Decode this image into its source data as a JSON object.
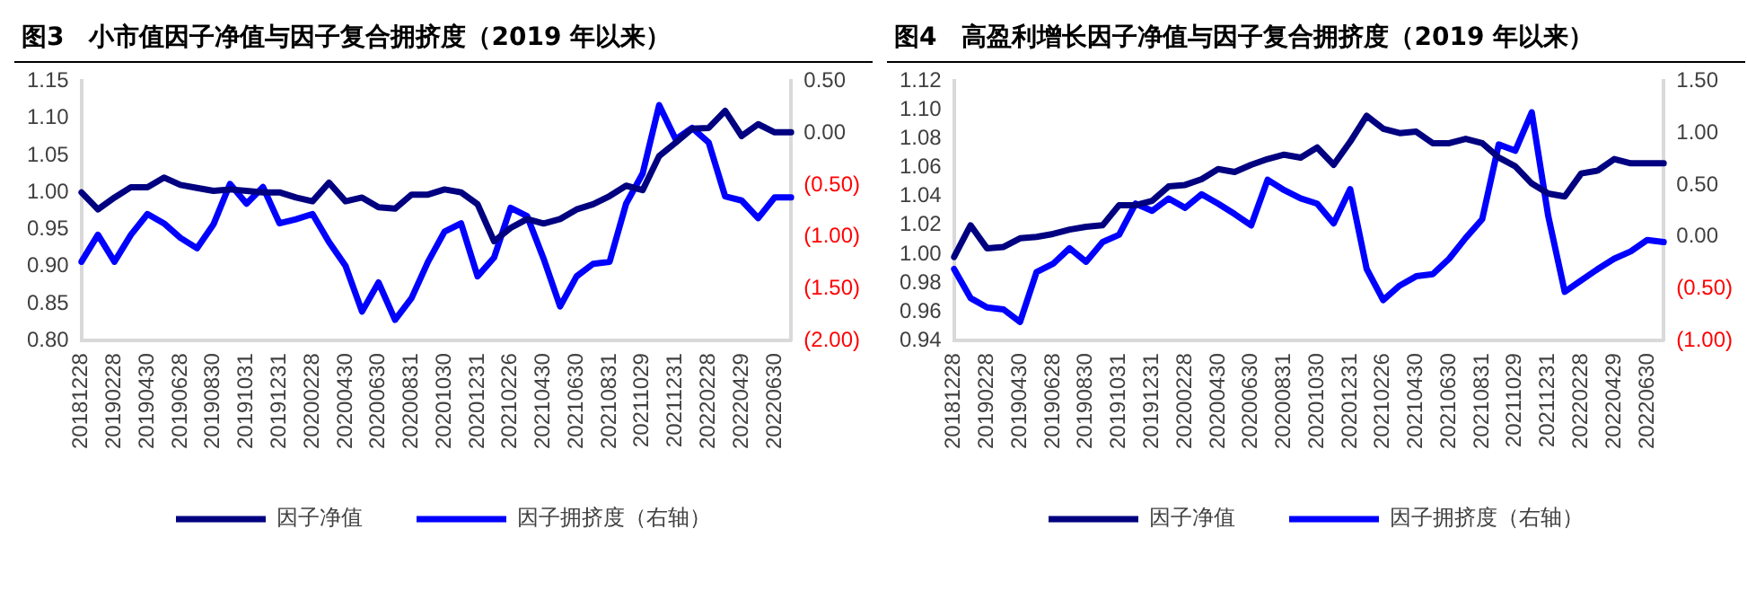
{
  "chart_data": [
    {
      "type": "line",
      "title": "图3　小市值因子净值与因子复合拥挤度（2019 年以来）",
      "categories": [
        "20181228",
        null,
        "20190228",
        null,
        "20190430",
        null,
        "20190628",
        null,
        "20190830",
        null,
        "20191031",
        null,
        "20191231",
        null,
        "20200228",
        null,
        "20200430",
        null,
        "20200630",
        null,
        "20200831",
        null,
        "20201030",
        null,
        "20201231",
        null,
        "20210226",
        null,
        "20210430",
        null,
        "20210630",
        null,
        "20210831",
        null,
        "20211029",
        null,
        "20211231",
        null,
        "20220228",
        null,
        "20220429",
        null,
        "20220630",
        null
      ],
      "series": [
        {
          "name": "因子净值",
          "color": "#000080",
          "values": [
            1.0,
            0.977,
            0.993,
            1.007,
            1.007,
            1.02,
            1.01,
            1.006,
            1.002,
            1.004,
            1.002,
            1.0,
            1.0,
            0.993,
            0.988,
            1.013,
            0.988,
            0.993,
            0.98,
            0.978,
            0.997,
            0.997,
            1.004,
            1.0,
            0.984,
            0.934,
            0.952,
            0.964,
            0.958,
            0.964,
            0.977,
            0.984,
            0.995,
            1.009,
            1.003,
            1.049,
            1.067,
            1.086,
            1.087,
            1.11,
            1.076,
            1.092,
            1.081,
            1.081
          ]
        },
        {
          "name": "因子拥挤度（右轴）",
          "color": "#0000ff",
          "axis": "y2",
          "values": [
            -1.24,
            -0.98,
            -1.24,
            -0.98,
            -0.78,
            -0.87,
            -1.01,
            -1.11,
            -0.88,
            -0.49,
            -0.68,
            -0.52,
            -0.87,
            -0.83,
            -0.78,
            -1.05,
            -1.28,
            -1.72,
            -1.44,
            -1.8,
            -1.59,
            -1.24,
            -0.95,
            -0.87,
            -1.38,
            -1.2,
            -0.72,
            -0.8,
            -1.21,
            -1.67,
            -1.38,
            -1.26,
            -1.24,
            -0.68,
            -0.39,
            0.27,
            -0.06,
            0.05,
            -0.09,
            -0.61,
            -0.65,
            -0.82,
            -0.62,
            -0.62
          ]
        }
      ],
      "ylim": [
        0.8,
        1.15
      ],
      "yticks": [
        {
          "value": 0.8,
          "label": "0.80"
        },
        {
          "value": 0.85,
          "label": "0.85"
        },
        {
          "value": 0.9,
          "label": "0.90"
        },
        {
          "value": 0.95,
          "label": "0.95"
        },
        {
          "value": 1.0,
          "label": "1.00"
        },
        {
          "value": 1.05,
          "label": "1.05"
        },
        {
          "value": 1.1,
          "label": "1.10"
        },
        {
          "value": 1.15,
          "label": "1.15"
        }
      ],
      "y2lim": [
        -2,
        0.5
      ],
      "y2ticks": [
        {
          "value": -2,
          "label": "(2.00)"
        },
        {
          "value": -1.5,
          "label": "(1.50)"
        },
        {
          "value": -1,
          "label": "(1.00)"
        },
        {
          "value": -0.5,
          "label": "(0.50)"
        },
        {
          "value": 0,
          "label": "0.00"
        },
        {
          "value": 0.5,
          "label": "0.50"
        }
      ],
      "grid": false,
      "legend": "bottom",
      "marker": "none",
      "line_style": "solid"
    },
    {
      "type": "line",
      "title": "图4　高盈利增长因子净值与因子复合拥挤度（2019 年以来）",
      "categories": [
        "20181228",
        null,
        "20190228",
        null,
        "20190430",
        null,
        "20190628",
        null,
        "20190830",
        null,
        "20191031",
        null,
        "20191231",
        null,
        "20200228",
        null,
        "20200430",
        null,
        "20200630",
        null,
        "20200831",
        null,
        "20201030",
        null,
        "20201231",
        null,
        "20210226",
        null,
        "20210430",
        null,
        "20210630",
        null,
        "20210831",
        null,
        "20211029",
        null,
        "20211231",
        null,
        "20220228",
        null,
        "20220429",
        null,
        "20220630",
        null
      ],
      "series": [
        {
          "name": "因子净值",
          "color": "#000080",
          "values": [
            0.998,
            1.02,
            1.004,
            1.005,
            1.011,
            1.012,
            1.014,
            1.017,
            1.019,
            1.02,
            1.034,
            1.034,
            1.037,
            1.047,
            1.048,
            1.052,
            1.059,
            1.057,
            1.062,
            1.066,
            1.069,
            1.067,
            1.074,
            1.062,
            1.078,
            1.096,
            1.087,
            1.084,
            1.085,
            1.077,
            1.077,
            1.08,
            1.077,
            1.067,
            1.061,
            1.049,
            1.042,
            1.04,
            1.056,
            1.058,
            1.066,
            1.063,
            1.063,
            1.063
          ]
        },
        {
          "name": "因子拥挤度（右轴）",
          "color": "#0000ff",
          "axis": "y2",
          "values": [
            -0.31,
            -0.59,
            -0.68,
            -0.7,
            -0.82,
            -0.34,
            -0.26,
            -0.11,
            -0.24,
            -0.05,
            0.02,
            0.32,
            0.25,
            0.37,
            0.28,
            0.41,
            0.32,
            0.22,
            0.11,
            0.55,
            0.45,
            0.37,
            0.32,
            0.13,
            0.46,
            -0.31,
            -0.61,
            -0.47,
            -0.38,
            -0.36,
            -0.21,
            -0.01,
            0.17,
            0.89,
            0.83,
            1.2,
            0.2,
            -0.53,
            -0.42,
            -0.31,
            -0.21,
            -0.14,
            -0.03,
            -0.05
          ]
        }
      ],
      "ylim": [
        0.94,
        1.12
      ],
      "yticks": [
        {
          "value": 0.94,
          "label": "0.94"
        },
        {
          "value": 0.96,
          "label": "0.96"
        },
        {
          "value": 0.98,
          "label": "0.98"
        },
        {
          "value": 1.0,
          "label": "1.00"
        },
        {
          "value": 1.02,
          "label": "1.02"
        },
        {
          "value": 1.04,
          "label": "1.04"
        },
        {
          "value": 1.06,
          "label": "1.06"
        },
        {
          "value": 1.08,
          "label": "1.08"
        },
        {
          "value": 1.1,
          "label": "1.10"
        },
        {
          "value": 1.12,
          "label": "1.12"
        }
      ],
      "y2lim": [
        -1,
        1.5
      ],
      "y2ticks": [
        {
          "value": -1,
          "label": "(1.00)"
        },
        {
          "value": -0.5,
          "label": "(0.50)"
        },
        {
          "value": 0,
          "label": "0.00"
        },
        {
          "value": 0.5,
          "label": "0.50"
        },
        {
          "value": 1,
          "label": "1.00"
        },
        {
          "value": 1.5,
          "label": "1.50"
        }
      ],
      "grid": false,
      "legend": "bottom",
      "marker": "none",
      "line_style": "solid"
    }
  ]
}
